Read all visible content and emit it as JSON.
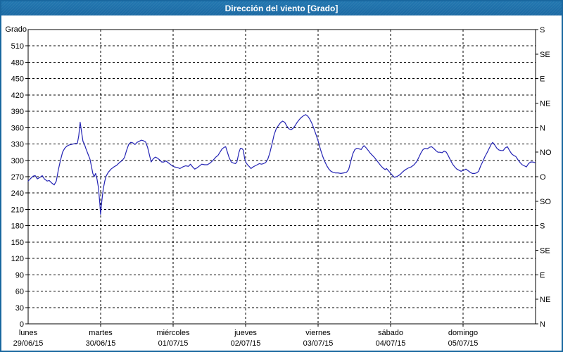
{
  "window": {
    "title": "Dirección del viento [Grado]"
  },
  "colors": {
    "frame_blue": "#19679f",
    "title_bar_blue": "#1f6fa9",
    "title_text": "#ffffff",
    "series_line": "#2424b4",
    "grid_and_text": "#000000",
    "background": "#ffffff"
  },
  "chart_data": {
    "type": "line",
    "title": "Dirección del viento [Grado]",
    "grid": "dashed",
    "legend": "none",
    "y_axis_left": {
      "label": "Grado",
      "min": 0,
      "max": 540,
      "tick_step": 30
    },
    "y_axis_right": {
      "tick_step": 45,
      "labels_bottom_to_top": [
        "N",
        "NE",
        "E",
        "SE",
        "S",
        "SO",
        "O",
        "NO",
        "N",
        "NE",
        "E",
        "SE",
        "S"
      ]
    },
    "x_axis": {
      "days": [
        {
          "name": "lunes",
          "date": "29/06/15"
        },
        {
          "name": "martes",
          "date": "30/06/15"
        },
        {
          "name": "miércoles",
          "date": "01/07/15"
        },
        {
          "name": "jueves",
          "date": "02/07/15"
        },
        {
          "name": "viernes",
          "date": "03/07/15"
        },
        {
          "name": "sábado",
          "date": "04/07/15"
        },
        {
          "name": "domingo",
          "date": "05/07/15"
        }
      ]
    },
    "series": [
      {
        "name": "Dirección del viento",
        "unit": "Grado",
        "color": "#2424b4",
        "points": [
          [
            0.0,
            262
          ],
          [
            0.029,
            266
          ],
          [
            0.068,
            271
          ],
          [
            0.097,
            272
          ],
          [
            0.126,
            266
          ],
          [
            0.165,
            269
          ],
          [
            0.194,
            272
          ],
          [
            0.223,
            266
          ],
          [
            0.262,
            262
          ],
          [
            0.291,
            263
          ],
          [
            0.32,
            259
          ],
          [
            0.359,
            255
          ],
          [
            0.388,
            262
          ],
          [
            0.417,
            283
          ],
          [
            0.446,
            300
          ],
          [
            0.475,
            315
          ],
          [
            0.504,
            322
          ],
          [
            0.533,
            326
          ],
          [
            0.562,
            328
          ],
          [
            0.591,
            329
          ],
          [
            0.62,
            330
          ],
          [
            0.65,
            331
          ],
          [
            0.679,
            331
          ],
          [
            0.698,
            345
          ],
          [
            0.717,
            370
          ],
          [
            0.737,
            352
          ],
          [
            0.756,
            335
          ],
          [
            0.776,
            330
          ],
          [
            0.795,
            322
          ],
          [
            0.824,
            312
          ],
          [
            0.853,
            302
          ],
          [
            0.873,
            289
          ],
          [
            0.892,
            276
          ],
          [
            0.911,
            270
          ],
          [
            0.931,
            276
          ],
          [
            0.95,
            266
          ],
          [
            0.97,
            250
          ],
          [
            0.989,
            220
          ],
          [
            0.999,
            201
          ],
          [
            1.018,
            228
          ],
          [
            1.037,
            248
          ],
          [
            1.057,
            262
          ],
          [
            1.076,
            271
          ],
          [
            1.105,
            278
          ],
          [
            1.144,
            284
          ],
          [
            1.183,
            288
          ],
          [
            1.222,
            291
          ],
          [
            1.26,
            296
          ],
          [
            1.299,
            300
          ],
          [
            1.328,
            305
          ],
          [
            1.357,
            318
          ],
          [
            1.386,
            329
          ],
          [
            1.416,
            333
          ],
          [
            1.445,
            332
          ],
          [
            1.474,
            329
          ],
          [
            1.503,
            333
          ],
          [
            1.532,
            335
          ],
          [
            1.561,
            337
          ],
          [
            1.59,
            336
          ],
          [
            1.619,
            334
          ],
          [
            1.648,
            324
          ],
          [
            1.677,
            308
          ],
          [
            1.697,
            297
          ],
          [
            1.726,
            303
          ],
          [
            1.755,
            306
          ],
          [
            1.784,
            304
          ],
          [
            1.813,
            301
          ],
          [
            1.842,
            297
          ],
          [
            1.871,
            297
          ],
          [
            1.9,
            299
          ],
          [
            1.929,
            296
          ],
          [
            1.958,
            293
          ],
          [
            1.988,
            290
          ],
          [
            2.017,
            288
          ],
          [
            2.055,
            287
          ],
          [
            2.094,
            285
          ],
          [
            2.133,
            288
          ],
          [
            2.172,
            290
          ],
          [
            2.211,
            289
          ],
          [
            2.24,
            293
          ],
          [
            2.269,
            288
          ],
          [
            2.298,
            284
          ],
          [
            2.327,
            286
          ],
          [
            2.356,
            289
          ],
          [
            2.395,
            293
          ],
          [
            2.434,
            292
          ],
          [
            2.472,
            292
          ],
          [
            2.511,
            295
          ],
          [
            2.55,
            300
          ],
          [
            2.589,
            306
          ],
          [
            2.618,
            309
          ],
          [
            2.647,
            315
          ],
          [
            2.676,
            321
          ],
          [
            2.705,
            324
          ],
          [
            2.725,
            325
          ],
          [
            2.753,
            313
          ],
          [
            2.773,
            305
          ],
          [
            2.802,
            297
          ],
          [
            2.831,
            295
          ],
          [
            2.86,
            294
          ],
          [
            2.88,
            297
          ],
          [
            2.909,
            315
          ],
          [
            2.928,
            322
          ],
          [
            2.948,
            322
          ],
          [
            2.967,
            319
          ],
          [
            2.987,
            303
          ],
          [
            3.006,
            296
          ],
          [
            3.026,
            292
          ],
          [
            3.055,
            288
          ],
          [
            3.074,
            285
          ],
          [
            3.103,
            288
          ],
          [
            3.132,
            290
          ],
          [
            3.161,
            292
          ],
          [
            3.19,
            294
          ],
          [
            3.219,
            293
          ],
          [
            3.248,
            294
          ],
          [
            3.277,
            296
          ],
          [
            3.306,
            302
          ],
          [
            3.335,
            314
          ],
          [
            3.364,
            330
          ],
          [
            3.393,
            347
          ],
          [
            3.422,
            358
          ],
          [
            3.452,
            364
          ],
          [
            3.481,
            369
          ],
          [
            3.51,
            372
          ],
          [
            3.539,
            370
          ],
          [
            3.568,
            363
          ],
          [
            3.597,
            358
          ],
          [
            3.626,
            356
          ],
          [
            3.655,
            359
          ],
          [
            3.684,
            364
          ],
          [
            3.713,
            370
          ],
          [
            3.742,
            375
          ],
          [
            3.771,
            379
          ],
          [
            3.8,
            382
          ],
          [
            3.829,
            384
          ],
          [
            3.858,
            381
          ],
          [
            3.888,
            375
          ],
          [
            3.917,
            367
          ],
          [
            3.946,
            357
          ],
          [
            3.975,
            346
          ],
          [
            4.004,
            334
          ],
          [
            4.033,
            320
          ],
          [
            4.062,
            308
          ],
          [
            4.091,
            298
          ],
          [
            4.12,
            290
          ],
          [
            4.149,
            284
          ],
          [
            4.178,
            280
          ],
          [
            4.207,
            278
          ],
          [
            4.236,
            277
          ],
          [
            4.275,
            277
          ],
          [
            4.314,
            276
          ],
          [
            4.353,
            277
          ],
          [
            4.392,
            278
          ],
          [
            4.421,
            283
          ],
          [
            4.45,
            298
          ],
          [
            4.479,
            312
          ],
          [
            4.508,
            320
          ],
          [
            4.537,
            322
          ],
          [
            4.566,
            321
          ],
          [
            4.595,
            320
          ],
          [
            4.615,
            324
          ],
          [
            4.634,
            327
          ],
          [
            4.663,
            323
          ],
          [
            4.692,
            318
          ],
          [
            4.721,
            313
          ],
          [
            4.75,
            309
          ],
          [
            4.779,
            305
          ],
          [
            4.808,
            300
          ],
          [
            4.837,
            295
          ],
          [
            4.866,
            290
          ],
          [
            4.895,
            286
          ],
          [
            4.924,
            283
          ],
          [
            4.944,
            285
          ],
          [
            4.963,
            282
          ],
          [
            4.983,
            279
          ],
          [
            5.022,
            273
          ],
          [
            5.051,
            269
          ],
          [
            5.08,
            270
          ],
          [
            5.11,
            272
          ],
          [
            5.139,
            275
          ],
          [
            5.168,
            279
          ],
          [
            5.207,
            283
          ],
          [
            5.246,
            286
          ],
          [
            5.284,
            288
          ],
          [
            5.323,
            292
          ],
          [
            5.362,
            298
          ],
          [
            5.391,
            306
          ],
          [
            5.42,
            314
          ],
          [
            5.449,
            320
          ],
          [
            5.478,
            322
          ],
          [
            5.507,
            321
          ],
          [
            5.536,
            324
          ],
          [
            5.565,
            325
          ],
          [
            5.594,
            322
          ],
          [
            5.623,
            318
          ],
          [
            5.652,
            315
          ],
          [
            5.682,
            315
          ],
          [
            5.711,
            314
          ],
          [
            5.74,
            317
          ],
          [
            5.769,
            315
          ],
          [
            5.798,
            308
          ],
          [
            5.827,
            300
          ],
          [
            5.856,
            293
          ],
          [
            5.885,
            288
          ],
          [
            5.914,
            284
          ],
          [
            5.943,
            282
          ],
          [
            5.972,
            280
          ],
          [
            6.011,
            282
          ],
          [
            6.04,
            284
          ],
          [
            6.07,
            281
          ],
          [
            6.099,
            278
          ],
          [
            6.128,
            276
          ],
          [
            6.157,
            276
          ],
          [
            6.186,
            277
          ],
          [
            6.215,
            280
          ],
          [
            6.244,
            290
          ],
          [
            6.273,
            298
          ],
          [
            6.302,
            307
          ],
          [
            6.331,
            314
          ],
          [
            6.36,
            322
          ],
          [
            6.39,
            330
          ],
          [
            6.409,
            333
          ],
          [
            6.438,
            328
          ],
          [
            6.467,
            322
          ],
          [
            6.496,
            319
          ],
          [
            6.525,
            318
          ],
          [
            6.554,
            318
          ],
          [
            6.583,
            323
          ],
          [
            6.612,
            325
          ],
          [
            6.641,
            318
          ],
          [
            6.67,
            312
          ],
          [
            6.699,
            309
          ],
          [
            6.728,
            307
          ],
          [
            6.757,
            301
          ],
          [
            6.786,
            296
          ],
          [
            6.816,
            292
          ],
          [
            6.845,
            290
          ],
          [
            6.874,
            288
          ],
          [
            6.903,
            294
          ],
          [
            6.932,
            297
          ],
          [
            6.961,
            297
          ],
          [
            6.99,
            296
          ]
        ]
      }
    ]
  }
}
